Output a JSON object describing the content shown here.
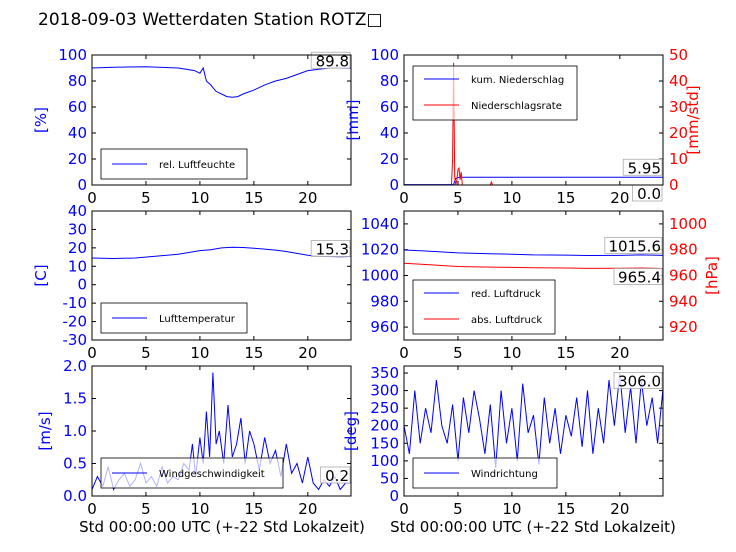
{
  "title": "2018-09-03 Wetterdaten Station ROTZ□",
  "colors": {
    "primary": "#0000ff",
    "secondary": "#ff0000",
    "axis": "#000000"
  },
  "chart_data": [
    {
      "id": "humidity",
      "type": "line",
      "xlim": [
        0,
        24
      ],
      "xticks": [
        0,
        5,
        10,
        15,
        20
      ],
      "ylim": [
        0,
        100
      ],
      "yticks": [
        0,
        20,
        40,
        60,
        80,
        100
      ],
      "ylabel": "[%]",
      "ylabel_color": "blue",
      "legend_position": "lower-left",
      "series": [
        {
          "name": "rel. Luftfeuchte",
          "color": "blue",
          "x": [
            0,
            2,
            5,
            8,
            9.5,
            10,
            10.3,
            10.6,
            11,
            11.5,
            12,
            12.5,
            13,
            13.5,
            14,
            15,
            16,
            17,
            18,
            19,
            20,
            21,
            22,
            23,
            24
          ],
          "y": [
            90,
            90.5,
            91,
            90,
            88,
            86,
            90,
            80,
            77,
            72,
            70,
            68,
            67.5,
            68,
            70,
            73,
            77,
            80,
            82,
            85,
            88,
            89,
            90,
            90,
            89.8
          ]
        }
      ],
      "annotations": [
        {
          "text": "89.8",
          "series": 0
        }
      ]
    },
    {
      "id": "precip",
      "type": "line",
      "xlim": [
        0,
        24
      ],
      "xticks": [
        0,
        5,
        10,
        15,
        20
      ],
      "ylim": [
        0,
        100
      ],
      "yticks": [
        0,
        20,
        40,
        60,
        80,
        100
      ],
      "ylabel": "[mm]",
      "ylabel_color": "blue",
      "y2lim": [
        0,
        50
      ],
      "y2ticks": [
        0,
        10,
        20,
        30,
        40,
        50
      ],
      "y2label": "[mm/std]",
      "y2label_color": "red",
      "legend_position": "top-left",
      "series": [
        {
          "name": "kum. Niederschlag",
          "color": "blue",
          "axis": "left",
          "x": [
            0,
            4.6,
            4.7,
            4.8,
            5.0,
            5.4,
            24
          ],
          "y": [
            0.3,
            0.3,
            3,
            5,
            5.8,
            5.95,
            5.95
          ]
        },
        {
          "name": "Niederschlagsrate",
          "color": "red",
          "axis": "right",
          "x": [
            0,
            4.4,
            4.5,
            4.6,
            4.7,
            4.8,
            4.9,
            5.0,
            5.1,
            5.2,
            5.3,
            5.4,
            5.6,
            8.0,
            8.1,
            8.2,
            24
          ],
          "y": [
            0,
            0,
            10,
            47,
            3,
            0,
            2,
            6,
            6.5,
            2,
            5,
            0,
            0,
            0,
            1.2,
            0,
            0
          ]
        }
      ],
      "annotations": [
        {
          "text": "5.95",
          "series": 0
        },
        {
          "text": "0.0",
          "series": 1
        }
      ]
    },
    {
      "id": "temperature",
      "type": "line",
      "xlim": [
        0,
        24
      ],
      "xticks": [
        0,
        5,
        10,
        15,
        20
      ],
      "ylim": [
        -30,
        40
      ],
      "yticks": [
        -30,
        -20,
        -10,
        0,
        10,
        20,
        30,
        40
      ],
      "ylabel": "[C]",
      "ylabel_color": "blue",
      "legend_position": "lower-left",
      "series": [
        {
          "name": "Lufttemperatur",
          "color": "blue",
          "x": [
            0,
            2,
            4,
            6,
            8,
            10,
            11,
            12,
            13,
            14,
            15,
            16,
            17,
            18,
            19,
            20,
            21,
            22,
            23,
            24
          ],
          "y": [
            14.5,
            14.2,
            14.5,
            15.5,
            16.5,
            18.5,
            19,
            20,
            20.3,
            20.2,
            19.8,
            19.3,
            18.8,
            18,
            17,
            16,
            15.5,
            15.3,
            15.2,
            15.3
          ]
        }
      ],
      "annotations": [
        {
          "text": "15.3",
          "series": 0
        }
      ]
    },
    {
      "id": "pressure",
      "type": "line",
      "xlim": [
        0,
        24
      ],
      "xticks": [
        0,
        5,
        10,
        15,
        20
      ],
      "ylim": [
        950,
        1050
      ],
      "yticks": [
        960,
        980,
        1000,
        1020,
        1040
      ],
      "y2lim": [
        910,
        1010
      ],
      "y2ticks": [
        920,
        940,
        960,
        980,
        1000
      ],
      "y2label": "[hPa]",
      "y2label_color": "red",
      "legend_position": "lower-left",
      "series": [
        {
          "name": "red. Luftdruck",
          "color": "blue",
          "axis": "left",
          "x": [
            0,
            2,
            5,
            8,
            10,
            12,
            15,
            17,
            20,
            22,
            24
          ],
          "y": [
            1019.8,
            1019,
            1017.5,
            1016.8,
            1016.5,
            1016,
            1015.8,
            1015.5,
            1015.6,
            1016,
            1015.6
          ]
        },
        {
          "name": "abs. Luftdruck",
          "color": "red",
          "axis": "right",
          "x": [
            0,
            2,
            5,
            8,
            10,
            12,
            15,
            17,
            20,
            22,
            24
          ],
          "y": [
            969.5,
            968.5,
            967,
            966.5,
            966.3,
            966,
            965.8,
            965.5,
            965.6,
            965.8,
            965.4
          ]
        }
      ],
      "annotations": [
        {
          "text": "1015.6",
          "series": 0
        },
        {
          "text": "965.4",
          "series": 1
        }
      ]
    },
    {
      "id": "wind-speed",
      "type": "line",
      "xlim": [
        0,
        24
      ],
      "xticks": [
        0,
        5,
        10,
        15,
        20
      ],
      "ylim": [
        0,
        2.0
      ],
      "yticks": [
        "0.0",
        "0.5",
        "1.0",
        "1.5",
        "2.0"
      ],
      "ylabel": "[m/s]",
      "ylabel_color": "blue",
      "legend_position": "lower-left",
      "series": [
        {
          "name": "Windgeschwindigkeit",
          "color": "blue",
          "x": [
            0,
            0.5,
            1,
            1.5,
            2,
            2.5,
            3,
            3.5,
            4,
            4.5,
            5,
            5.5,
            6,
            6.5,
            7,
            7.5,
            8,
            8.5,
            9,
            9.3,
            9.6,
            10,
            10.3,
            10.6,
            10.9,
            11.2,
            11.5,
            11.8,
            12.2,
            12.6,
            13,
            13.4,
            13.8,
            14.2,
            14.6,
            15,
            15.5,
            16,
            16.5,
            17,
            17.5,
            18,
            18.5,
            19,
            19.5,
            20,
            20.5,
            21,
            21.5,
            22,
            22.5,
            23,
            23.5,
            24
          ],
          "y": [
            0.1,
            0.3,
            0.15,
            0.45,
            0.1,
            0.25,
            0.35,
            0.15,
            0.25,
            0.5,
            0.2,
            0.3,
            0.15,
            0.45,
            0.2,
            0.3,
            0.25,
            0.5,
            0.4,
            0.8,
            0.3,
            0.9,
            0.5,
            1.3,
            0.6,
            1.9,
            0.8,
            1.0,
            0.5,
            1.4,
            0.6,
            0.8,
            1.2,
            0.5,
            1.0,
            0.8,
            0.4,
            0.9,
            0.5,
            0.7,
            0.3,
            0.8,
            0.35,
            0.5,
            0.2,
            0.6,
            0.2,
            0.1,
            0.25,
            0.15,
            0.3,
            0.1,
            0.2,
            0.2
          ]
        }
      ],
      "annotations": [
        {
          "text": "0.2",
          "series": 0
        }
      ]
    },
    {
      "id": "wind-direction",
      "type": "line",
      "xlim": [
        0,
        24
      ],
      "xticks": [
        0,
        5,
        10,
        15,
        20
      ],
      "ylim": [
        0,
        370
      ],
      "yticks": [
        0,
        50,
        100,
        150,
        200,
        250,
        300,
        350
      ],
      "ylabel": "[deg]",
      "ylabel_color": "blue",
      "legend_position": "lower-left",
      "series": [
        {
          "name": "Windrichtung",
          "color": "blue",
          "x": [
            0,
            0.5,
            1,
            1.5,
            2,
            2.5,
            3,
            3.5,
            4,
            4.5,
            5,
            5.5,
            6,
            6.5,
            7,
            7.5,
            8,
            8.5,
            9,
            9.5,
            10,
            10.5,
            11,
            11.5,
            12,
            12.5,
            13,
            13.5,
            14,
            14.5,
            15,
            15.5,
            16,
            16.5,
            17,
            17.5,
            18,
            18.5,
            19,
            19.5,
            20,
            20.5,
            21,
            21.5,
            22,
            22.5,
            23,
            23.5,
            24
          ],
          "y": [
            200,
            120,
            300,
            150,
            250,
            180,
            330,
            200,
            150,
            260,
            100,
            280,
            180,
            300,
            220,
            120,
            260,
            80,
            300,
            150,
            250,
            100,
            320,
            180,
            230,
            90,
            280,
            150,
            250,
            120,
            230,
            170,
            280,
            140,
            300,
            120,
            250,
            150,
            330,
            200,
            350,
            180,
            310,
            150,
            330,
            200,
            280,
            150,
            306
          ]
        }
      ],
      "annotations": [
        {
          "text": "306.0",
          "series": 0
        }
      ]
    }
  ],
  "footer": {
    "xlabel_left": "Std 00:00:00 UTC (+-22 Std Lokalzeit)",
    "xlabel_right": "Std 00:00:00 UTC (+-22 Std Lokalzeit)"
  }
}
